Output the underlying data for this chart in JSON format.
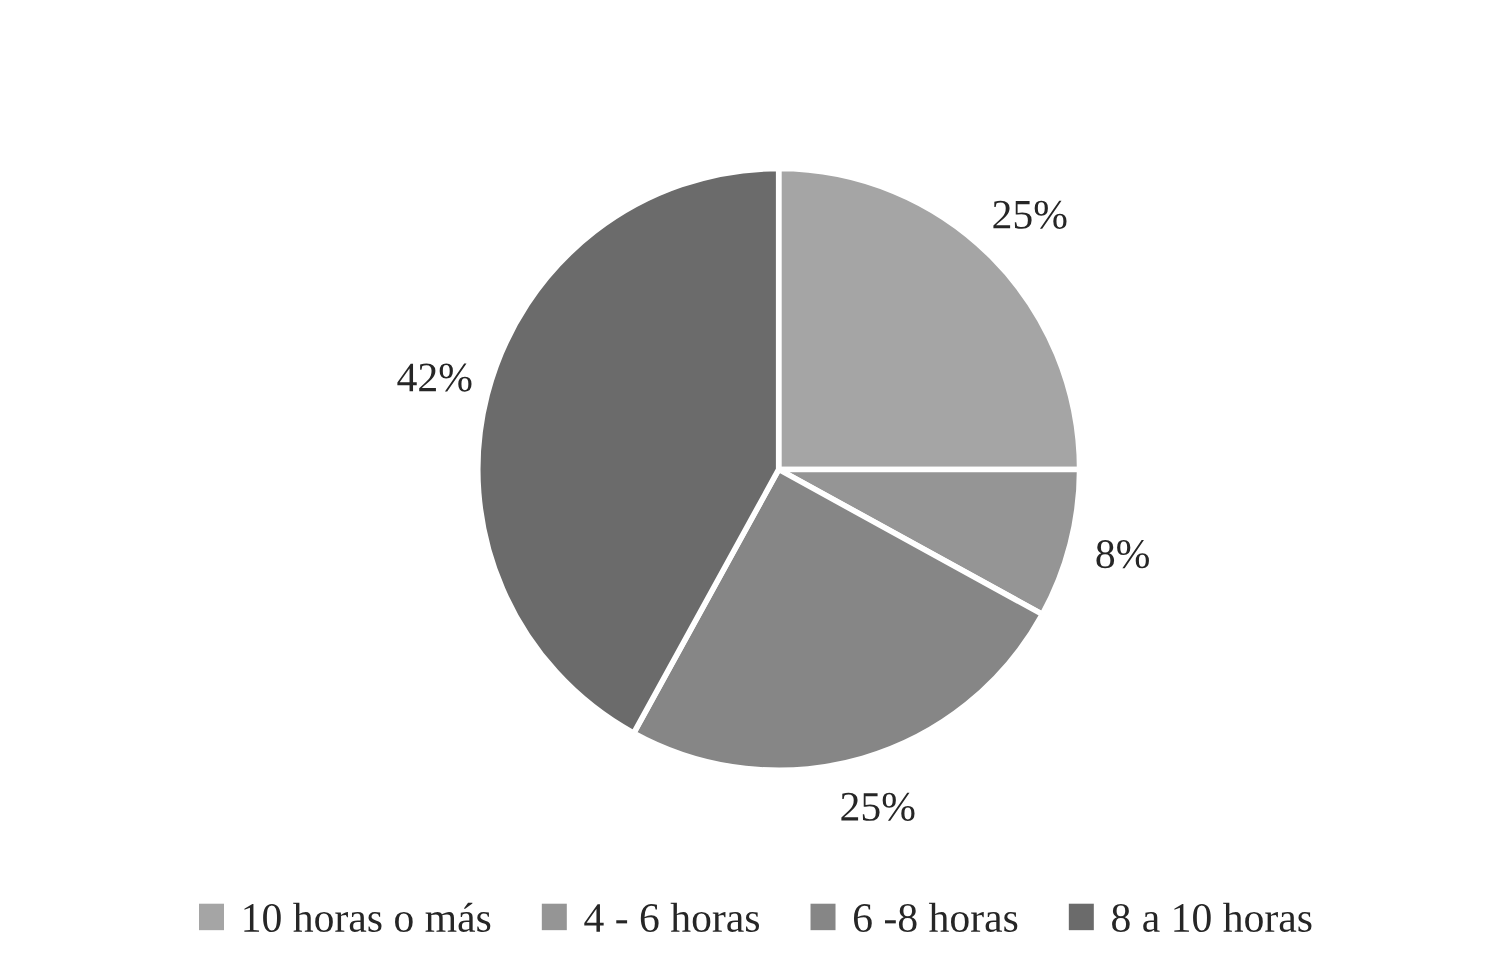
{
  "chart_data": {
    "type": "pie",
    "categories": [
      "10 horas o más",
      "4 - 6 horas",
      "6 -8 horas",
      "8 a 10 horas"
    ],
    "values": [
      25,
      8,
      25,
      42
    ],
    "value_labels": [
      "25%",
      "8%",
      "25%",
      "42%"
    ],
    "colors": [
      "#a5a5a5",
      "#959595",
      "#868686",
      "#6b6b6b"
    ],
    "legend": "bottom"
  }
}
